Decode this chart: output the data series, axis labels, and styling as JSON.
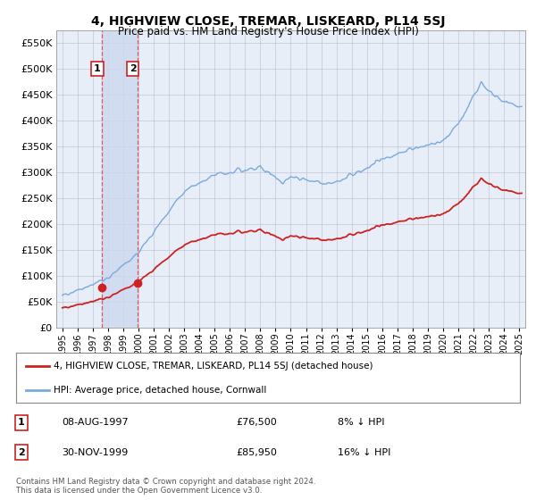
{
  "title": "4, HIGHVIEW CLOSE, TREMAR, LISKEARD, PL14 5SJ",
  "subtitle": "Price paid vs. HM Land Registry's House Price Index (HPI)",
  "legend_label_red": "4, HIGHVIEW CLOSE, TREMAR, LISKEARD, PL14 5SJ (detached house)",
  "legend_label_blue": "HPI: Average price, detached house, Cornwall",
  "footnote": "Contains HM Land Registry data © Crown copyright and database right 2024.\nThis data is licensed under the Open Government Licence v3.0.",
  "transactions": [
    {
      "num": 1,
      "date": "08-AUG-1997",
      "price": 76500,
      "pct": "8%",
      "direction": "↓"
    },
    {
      "num": 2,
      "date": "30-NOV-1999",
      "price": 85950,
      "pct": "16%",
      "direction": "↓"
    }
  ],
  "transaction_years": [
    1997.6,
    1999.92
  ],
  "transaction_prices": [
    76500,
    85950
  ],
  "ylim": [
    0,
    575000
  ],
  "yticks": [
    0,
    50000,
    100000,
    150000,
    200000,
    250000,
    300000,
    350000,
    400000,
    450000,
    500000,
    550000
  ],
  "ytick_labels": [
    "£0",
    "£50K",
    "£100K",
    "£150K",
    "£200K",
    "£250K",
    "£300K",
    "£350K",
    "£400K",
    "£450K",
    "£500K",
    "£550K"
  ],
  "plot_bg_color": "#e8eef8",
  "red_color": "#cc2222",
  "blue_color": "#7aaadd",
  "shade_color": "#ccd8ee",
  "grid_color": "#bbbbcc",
  "vline_color": "#dd4444"
}
